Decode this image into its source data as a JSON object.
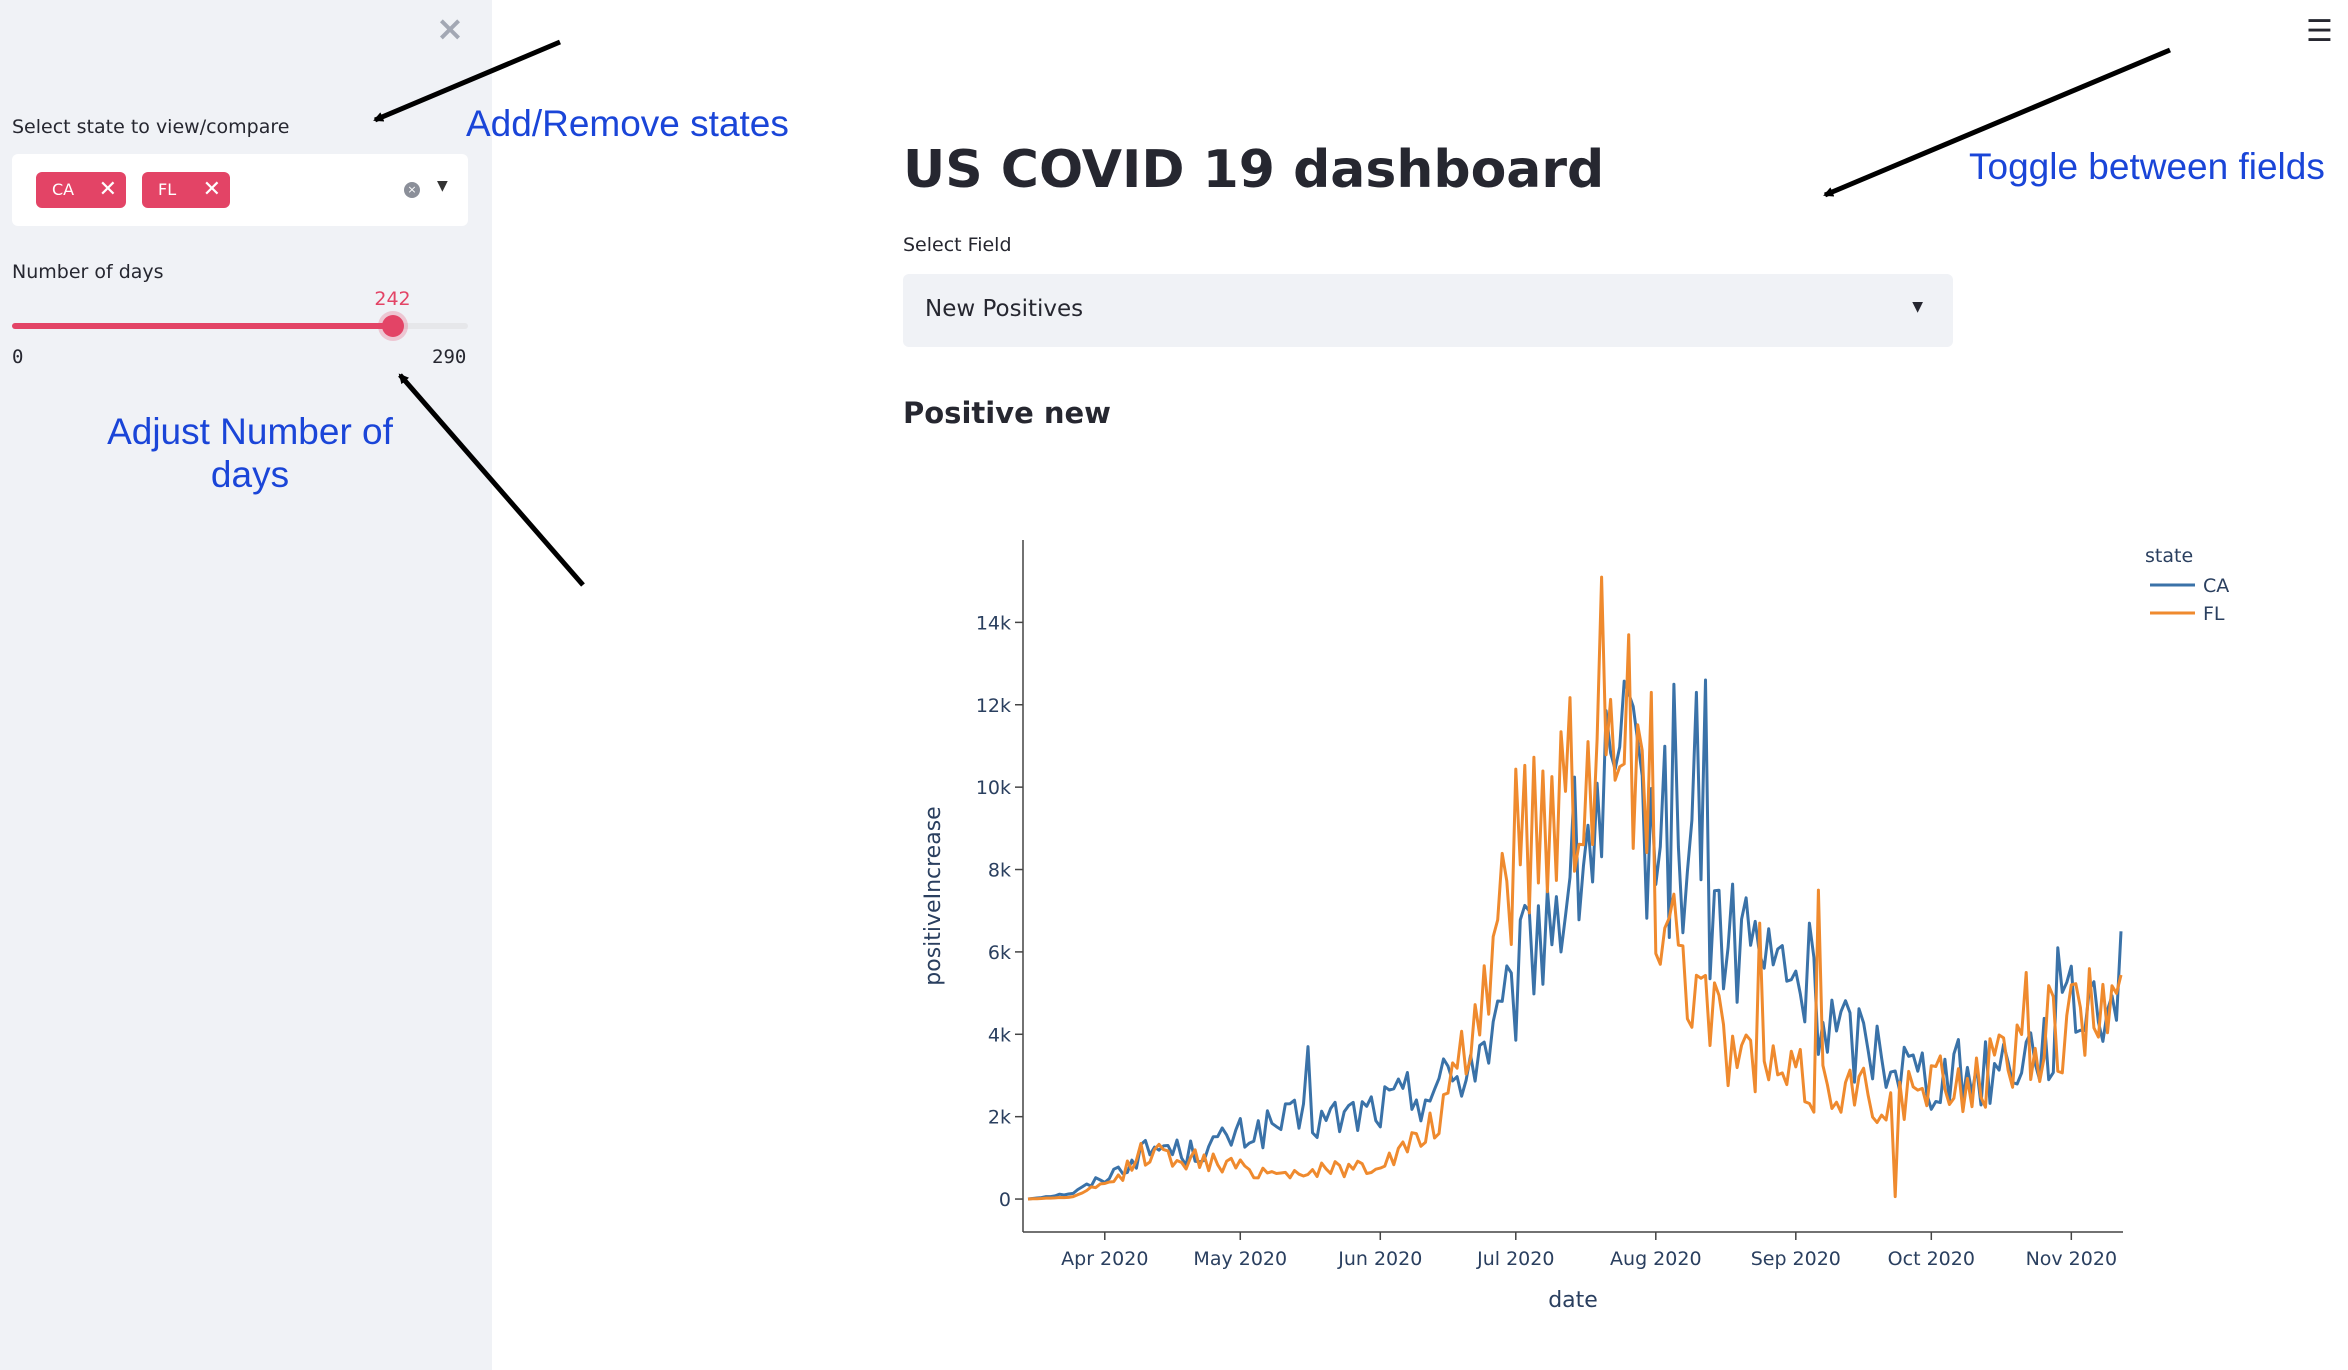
{
  "sidebar": {
    "close_icon": "close-icon",
    "state_select_label": "Select state to view/compare",
    "states": [
      "CA",
      "FL"
    ],
    "chip_close_glyph": "✕",
    "clear_icon": "clear-circle-icon",
    "dropdown_icon": "caret-down-icon",
    "days_label": "Number of days",
    "days_value": "242",
    "days_min": "0",
    "days_max": "290",
    "accent_color": "#e34466"
  },
  "annotations": {
    "add_remove": "Add/Remove states",
    "adjust_days": "Adjust Number of days",
    "toggle_fields": "Toggle between fields",
    "color": "#1a45d8"
  },
  "main": {
    "menu_icon": "hamburger-menu-icon",
    "title": "US COVID 19 dashboard",
    "field_label": "Select Field",
    "field_value": "New Positives",
    "chart_heading": "Positive new"
  },
  "chart_data": {
    "type": "line",
    "xlabel": "date",
    "ylabel": "positiveIncrease",
    "legend_title": "state",
    "legend_position": "top-right",
    "x_ticks": [
      "Apr 2020",
      "May 2020",
      "Jun 2020",
      "Jul 2020",
      "Aug 2020",
      "Sep 2020",
      "Oct 2020",
      "Nov 2020"
    ],
    "y_ticks": [
      "0",
      "2k",
      "4k",
      "6k",
      "8k",
      "10k",
      "12k",
      "14k"
    ],
    "ylim": [
      -800,
      16000
    ],
    "x_range_days": [
      0,
      242
    ],
    "grid": false,
    "series": [
      {
        "name": "CA",
        "color": "#3a72a8",
        "anchors": [
          [
            0,
            0
          ],
          [
            10,
            150
          ],
          [
            20,
            700
          ],
          [
            25,
            1100
          ],
          [
            30,
            1300
          ],
          [
            35,
            1100
          ],
          [
            40,
            1250
          ],
          [
            45,
            1500
          ],
          [
            50,
            1600
          ],
          [
            55,
            1800
          ],
          [
            60,
            1900
          ],
          [
            65,
            1900
          ],
          [
            70,
            2000
          ],
          [
            75,
            2150
          ],
          [
            80,
            2300
          ],
          [
            85,
            2550
          ],
          [
            90,
            2700
          ],
          [
            95,
            3000
          ],
          [
            100,
            3600
          ],
          [
            105,
            4200
          ],
          [
            108,
            4900
          ],
          [
            112,
            6500
          ],
          [
            116,
            7000
          ],
          [
            120,
            7800
          ],
          [
            125,
            9000
          ],
          [
            128,
            9500
          ],
          [
            132,
            10000
          ],
          [
            135,
            9500
          ],
          [
            140,
            8800
          ],
          [
            145,
            8000
          ],
          [
            148,
            7500
          ],
          [
            152,
            6800
          ],
          [
            156,
            6000
          ],
          [
            160,
            6500
          ],
          [
            164,
            5500
          ],
          [
            168,
            5600
          ],
          [
            172,
            5000
          ],
          [
            176,
            4400
          ],
          [
            180,
            4000
          ],
          [
            185,
            3800
          ],
          [
            190,
            3600
          ],
          [
            195,
            3200
          ],
          [
            200,
            3000
          ],
          [
            205,
            3100
          ],
          [
            210,
            3000
          ],
          [
            215,
            3300
          ],
          [
            220,
            3600
          ],
          [
            225,
            3800
          ],
          [
            230,
            4300
          ],
          [
            235,
            4900
          ],
          [
            242,
            5400
          ]
        ],
        "spikes": [
          [
            62,
            3700
          ],
          [
            143,
            12500
          ],
          [
            148,
            12300
          ],
          [
            150,
            12600
          ],
          [
            173,
            6700
          ],
          [
            228,
            6100
          ],
          [
            242,
            6500
          ]
        ]
      },
      {
        "name": "FL",
        "color": "#ef8a2e",
        "anchors": [
          [
            0,
            0
          ],
          [
            10,
            50
          ],
          [
            20,
            500
          ],
          [
            25,
            1100
          ],
          [
            30,
            1100
          ],
          [
            35,
            1000
          ],
          [
            40,
            900
          ],
          [
            45,
            800
          ],
          [
            50,
            700
          ],
          [
            55,
            650
          ],
          [
            60,
            650
          ],
          [
            65,
            700
          ],
          [
            70,
            750
          ],
          [
            75,
            800
          ],
          [
            80,
            950
          ],
          [
            85,
            1300
          ],
          [
            90,
            1800
          ],
          [
            95,
            2800
          ],
          [
            98,
            4000
          ],
          [
            100,
            4600
          ],
          [
            103,
            6300
          ],
          [
            106,
            8100
          ],
          [
            110,
            9000
          ],
          [
            114,
            9500
          ],
          [
            118,
            10200
          ],
          [
            122,
            11000
          ],
          [
            125,
            11200
          ],
          [
            128,
            10700
          ],
          [
            132,
            10400
          ],
          [
            136,
            9200
          ],
          [
            140,
            7500
          ],
          [
            144,
            6500
          ],
          [
            148,
            5200
          ],
          [
            152,
            4500
          ],
          [
            156,
            3600
          ],
          [
            160,
            3300
          ],
          [
            165,
            3000
          ],
          [
            170,
            2900
          ],
          [
            175,
            2700
          ],
          [
            180,
            2800
          ],
          [
            185,
            2600
          ],
          [
            190,
            2500
          ],
          [
            195,
            2500
          ],
          [
            200,
            2700
          ],
          [
            205,
            2800
          ],
          [
            210,
            2900
          ],
          [
            215,
            3300
          ],
          [
            220,
            3700
          ],
          [
            225,
            4000
          ],
          [
            230,
            4300
          ],
          [
            235,
            4500
          ],
          [
            242,
            5000
          ]
        ],
        "spikes": [
          [
            127,
            15100
          ],
          [
            133,
            13700
          ],
          [
            138,
            12300
          ],
          [
            162,
            6700
          ],
          [
            175,
            7500
          ],
          [
            192,
            60
          ],
          [
            221,
            5500
          ]
        ]
      }
    ]
  }
}
